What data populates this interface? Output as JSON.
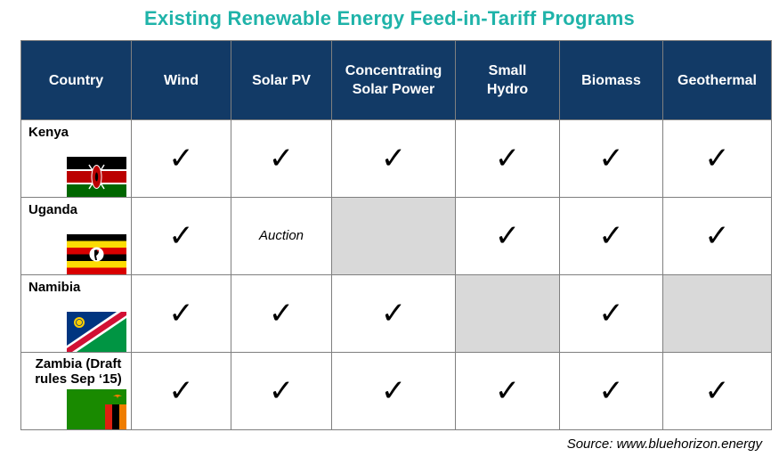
{
  "title": "Existing Renewable Energy Feed-in-Tariff Programs",
  "header": {
    "country": "Country",
    "wind": "Wind",
    "solar_pv": "Solar PV",
    "csp": "Concentrating Solar Power",
    "small_hydro": "Small Hydro",
    "biomass": "Biomass",
    "geothermal": "Geothermal"
  },
  "check_symbol": "✓",
  "rows": [
    {
      "country": "Kenya",
      "cells": [
        "✓",
        "✓",
        "✓",
        "✓",
        "✓",
        "✓"
      ]
    },
    {
      "country": "Uganda",
      "cells": [
        "✓",
        "Auction",
        "",
        "✓",
        "✓",
        "✓"
      ]
    },
    {
      "country": "Namibia",
      "cells": [
        "✓",
        "✓",
        "✓",
        "",
        "✓",
        ""
      ]
    },
    {
      "country": "Zambia (Draft rules Sep ‘15)",
      "cells": [
        "✓",
        "✓",
        "✓",
        "✓",
        "✓",
        "✓"
      ]
    }
  ],
  "source": "Source:  www.bluehorizon.energy",
  "colors": {
    "title": "#1fb3a9",
    "header_bg": "#123a66",
    "not_available": "#d9d9d9"
  },
  "icons": [
    "kenya-flag-icon",
    "uganda-flag-icon",
    "namibia-flag-icon",
    "zambia-flag-icon"
  ]
}
